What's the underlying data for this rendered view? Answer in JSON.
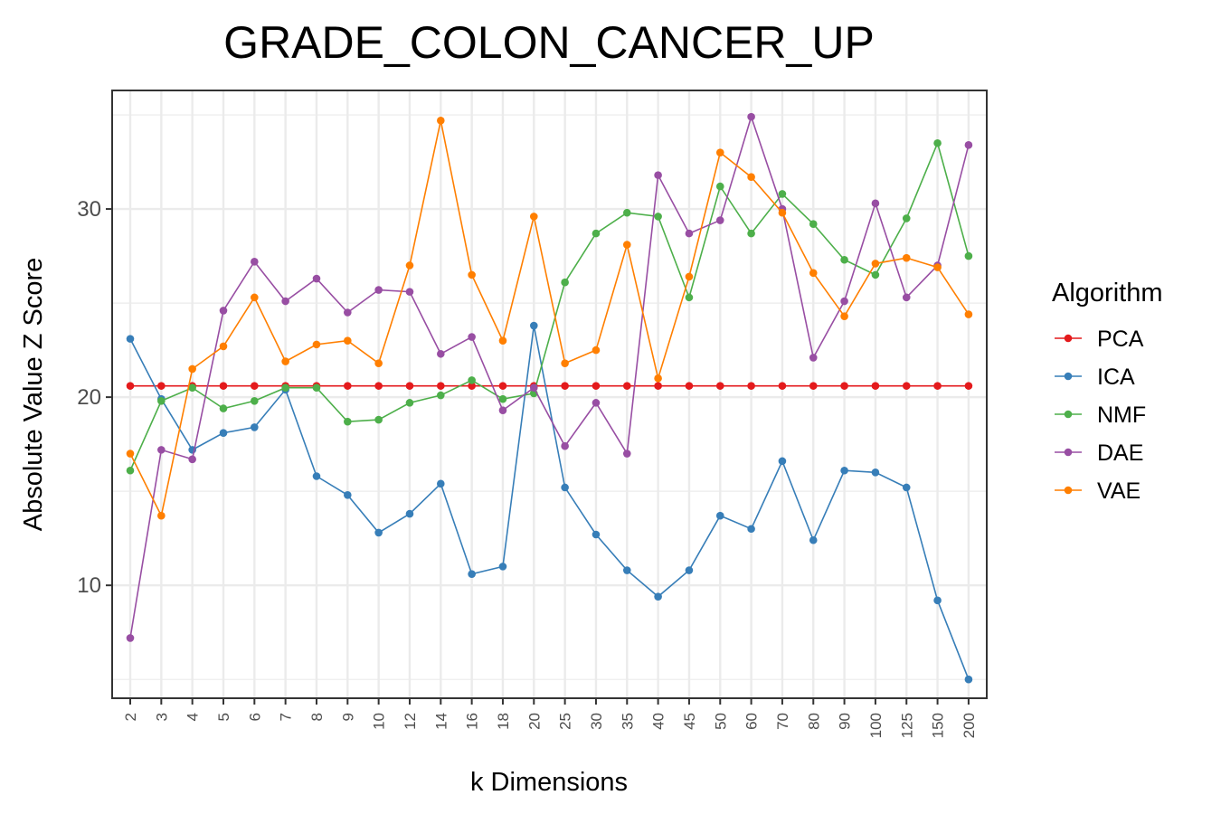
{
  "chart_data": {
    "type": "line",
    "title": "GRADE_COLON_CANCER_UP",
    "xlabel": "k Dimensions",
    "ylabel": "Absolute Value Z Score",
    "categories": [
      "2",
      "3",
      "4",
      "5",
      "6",
      "7",
      "8",
      "9",
      "10",
      "12",
      "14",
      "16",
      "18",
      "20",
      "25",
      "30",
      "35",
      "40",
      "45",
      "50",
      "60",
      "70",
      "80",
      "90",
      "100",
      "125",
      "150",
      "200"
    ],
    "y_ticks": [
      10,
      20,
      30
    ],
    "ylim": [
      4,
      36.3
    ],
    "grid": true,
    "legend_title": "Algorithm",
    "legend_position": "right",
    "series": [
      {
        "name": "PCA",
        "color": "#e41a1c",
        "values": [
          20.6,
          20.6,
          20.6,
          20.6,
          20.6,
          20.6,
          20.6,
          20.6,
          20.6,
          20.6,
          20.6,
          20.6,
          20.6,
          20.6,
          20.6,
          20.6,
          20.6,
          20.6,
          20.6,
          20.6,
          20.6,
          20.6,
          20.6,
          20.6,
          20.6,
          20.6,
          20.6,
          20.6
        ]
      },
      {
        "name": "ICA",
        "color": "#377eb8",
        "values": [
          23.1,
          19.9,
          17.2,
          18.1,
          18.4,
          20.4,
          15.8,
          14.8,
          12.8,
          13.8,
          15.4,
          10.6,
          11.0,
          23.8,
          15.2,
          12.7,
          10.8,
          9.4,
          10.8,
          13.7,
          13.0,
          16.6,
          12.4,
          16.1,
          16.0,
          15.2,
          9.2,
          5.0
        ]
      },
      {
        "name": "NMF",
        "color": "#4daf4a",
        "values": [
          16.1,
          19.8,
          20.5,
          19.4,
          19.8,
          20.5,
          20.5,
          18.7,
          18.8,
          19.7,
          20.1,
          20.9,
          19.9,
          20.2,
          26.1,
          28.7,
          29.8,
          29.6,
          25.3,
          31.2,
          28.7,
          30.8,
          29.2,
          27.3,
          26.5,
          29.5,
          33.5,
          27.5
        ]
      },
      {
        "name": "DAE",
        "color": "#984ea3",
        "values": [
          7.2,
          17.2,
          16.7,
          24.6,
          27.2,
          25.1,
          26.3,
          24.5,
          25.7,
          25.6,
          22.3,
          23.2,
          19.3,
          20.5,
          17.4,
          19.7,
          17.0,
          31.8,
          28.7,
          29.4,
          34.9,
          30.0,
          22.1,
          25.1,
          30.3,
          25.3,
          27.0,
          33.4
        ]
      },
      {
        "name": "VAE",
        "color": "#ff7f00",
        "values": [
          17.0,
          13.7,
          21.5,
          22.7,
          25.3,
          21.9,
          22.8,
          23.0,
          21.8,
          27.0,
          34.7,
          26.5,
          23.0,
          29.6,
          21.8,
          22.5,
          28.1,
          21.0,
          26.4,
          33.0,
          31.7,
          29.8,
          26.6,
          24.3,
          27.1,
          27.4,
          26.9,
          24.4
        ]
      }
    ]
  }
}
